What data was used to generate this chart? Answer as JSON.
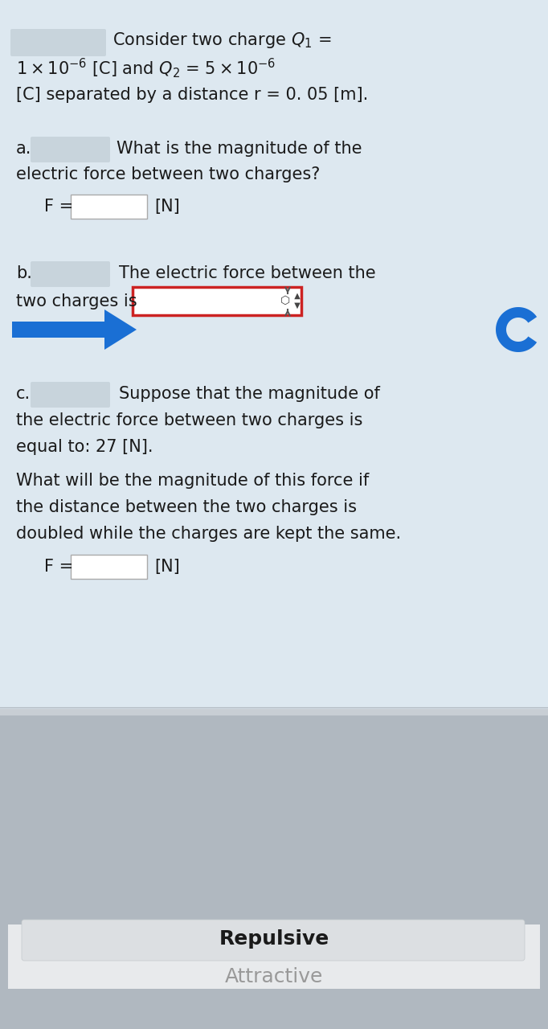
{
  "bg_top": "#dde8f0",
  "bg_bottom": "#b0b8c0",
  "bg_white_section": "#f0f4f7",
  "text_color": "#1a1a1a",
  "light_text": "#888888",
  "input_box_color": "#ffffff",
  "input_box_border": "#aaaaaa",
  "dropdown_border": "#cc2222",
  "dropdown_bg": "#ffffff",
  "blurred_color": "#c8d4dc",
  "blue_arrow_color": "#1a6fd4",
  "blue_cursor_color": "#1a6fd4",
  "repulsive_text": "#1a1a1a",
  "attractive_text": "#999999",
  "picker_bg": "#d0d5da",
  "picker_selected_bg": "#e8eaec",
  "title_line1": "Consider two charge $Q_1$ =",
  "title_line2": "$1 \\times 10^{-6}$ [C] and $Q_2$ = $5 \\times 10^{-6}$",
  "title_line3": "[C] separated by a distance r = 0. 05 [m].",
  "part_a_label": "a.",
  "part_a_text": "What is the magnitude of the\nelectric force between two charges?",
  "part_a_eq": "F =",
  "part_a_unit": "[N]",
  "part_b_label": "b.",
  "part_b_text": "The electric force between the\ntwo charges is",
  "part_c_label": "c.",
  "part_c_text1": "Suppose that the magnitude of\nthe electric force between two charges is\nequal to: 27 [N].",
  "part_c_text2": "What will be the magnitude of this force if\nthe distance between the two charges is\ndoubled while the charges are kept the same.",
  "part_c_eq": "F =",
  "part_c_unit": "[N]",
  "repulsive": "Repulsive",
  "attractive": "Attractive"
}
